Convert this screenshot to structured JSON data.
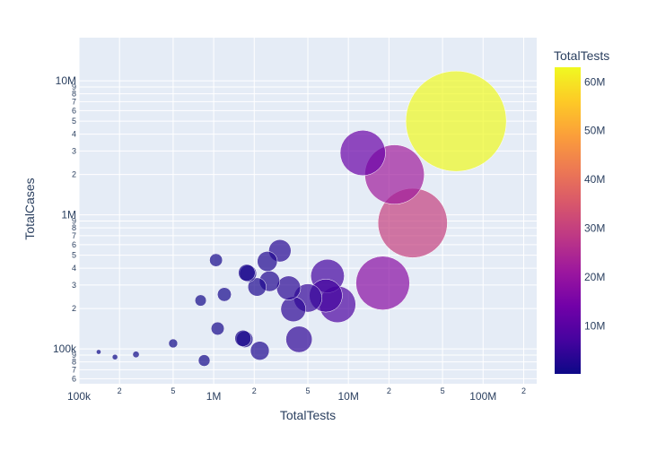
{
  "chart_data": {
    "type": "scatter",
    "xlabel": "TotalTests",
    "ylabel": "TotalCases",
    "x_scale": "log",
    "y_scale": "log",
    "xlim": [
      100000,
      250000000
    ],
    "ylim": [
      55000,
      21000000
    ],
    "x_major_ticks": [
      {
        "value": 100000,
        "label": "100k"
      },
      {
        "value": 1000000,
        "label": "1M"
      },
      {
        "value": 10000000,
        "label": "10M"
      },
      {
        "value": 100000000,
        "label": "100M"
      }
    ],
    "x_minor_ticks": [
      {
        "value": 200000,
        "label": "2"
      },
      {
        "value": 500000,
        "label": "5"
      },
      {
        "value": 2000000,
        "label": "2"
      },
      {
        "value": 5000000,
        "label": "5"
      },
      {
        "value": 20000000,
        "label": "2"
      },
      {
        "value": 50000000,
        "label": "5"
      },
      {
        "value": 200000000,
        "label": "2"
      }
    ],
    "y_major_ticks": [
      {
        "value": 100000,
        "label": "100k"
      },
      {
        "value": 1000000,
        "label": "1M"
      },
      {
        "value": 10000000,
        "label": "10M"
      }
    ],
    "y_minor_ticks": [
      {
        "value": 60000,
        "label": "6"
      },
      {
        "value": 70000,
        "label": "7"
      },
      {
        "value": 80000,
        "label": "8"
      },
      {
        "value": 90000,
        "label": "9"
      },
      {
        "value": 200000,
        "label": "2"
      },
      {
        "value": 300000,
        "label": "3"
      },
      {
        "value": 400000,
        "label": "4"
      },
      {
        "value": 500000,
        "label": "5"
      },
      {
        "value": 600000,
        "label": "6"
      },
      {
        "value": 700000,
        "label": "7"
      },
      {
        "value": 800000,
        "label": "8"
      },
      {
        "value": 900000,
        "label": "9"
      },
      {
        "value": 2000000,
        "label": "2"
      },
      {
        "value": 3000000,
        "label": "3"
      },
      {
        "value": 4000000,
        "label": "4"
      },
      {
        "value": 5000000,
        "label": "5"
      },
      {
        "value": 6000000,
        "label": "6"
      },
      {
        "value": 7000000,
        "label": "7"
      },
      {
        "value": 8000000,
        "label": "8"
      },
      {
        "value": 9000000,
        "label": "9"
      }
    ],
    "colorbar": {
      "title": "TotalTests",
      "range": [
        140000,
        63000000
      ],
      "ticks": [
        {
          "value": 10000000,
          "label": "10M"
        },
        {
          "value": 20000000,
          "label": "20M"
        },
        {
          "value": 30000000,
          "label": "30M"
        },
        {
          "value": 40000000,
          "label": "40M"
        },
        {
          "value": 50000000,
          "label": "50M"
        },
        {
          "value": 60000000,
          "label": "60M"
        }
      ]
    },
    "colorscale": [
      "#0d0887",
      "#46039f",
      "#7201a8",
      "#9c179e",
      "#bd3786",
      "#d8576b",
      "#ed7953",
      "#fb9f3a",
      "#fdca26",
      "#f0f921"
    ],
    "size_by": "TotalTests",
    "points": [
      {
        "x": 63000000,
        "y": 5000000
      },
      {
        "x": 30000000,
        "y": 870000
      },
      {
        "x": 22000000,
        "y": 2000000
      },
      {
        "x": 18000000,
        "y": 310000
      },
      {
        "x": 12800000,
        "y": 2900000
      },
      {
        "x": 8300000,
        "y": 215000
      },
      {
        "x": 7000000,
        "y": 350000
      },
      {
        "x": 6800000,
        "y": 250000
      },
      {
        "x": 5000000,
        "y": 240000
      },
      {
        "x": 4300000,
        "y": 118000
      },
      {
        "x": 3900000,
        "y": 198000
      },
      {
        "x": 3600000,
        "y": 285000
      },
      {
        "x": 3100000,
        "y": 540000
      },
      {
        "x": 2600000,
        "y": 320000
      },
      {
        "x": 2500000,
        "y": 450000
      },
      {
        "x": 2100000,
        "y": 290000
      },
      {
        "x": 2200000,
        "y": 97000
      },
      {
        "x": 1800000,
        "y": 365000
      },
      {
        "x": 1760000,
        "y": 370000
      },
      {
        "x": 1700000,
        "y": 118000
      },
      {
        "x": 1650000,
        "y": 120000
      },
      {
        "x": 1200000,
        "y": 255000
      },
      {
        "x": 1070000,
        "y": 142000
      },
      {
        "x": 1040000,
        "y": 460000
      },
      {
        "x": 800000,
        "y": 230000
      },
      {
        "x": 850000,
        "y": 82000
      },
      {
        "x": 500000,
        "y": 110000
      },
      {
        "x": 265000,
        "y": 91000
      },
      {
        "x": 185000,
        "y": 87000
      },
      {
        "x": 140000,
        "y": 95000
      }
    ]
  }
}
